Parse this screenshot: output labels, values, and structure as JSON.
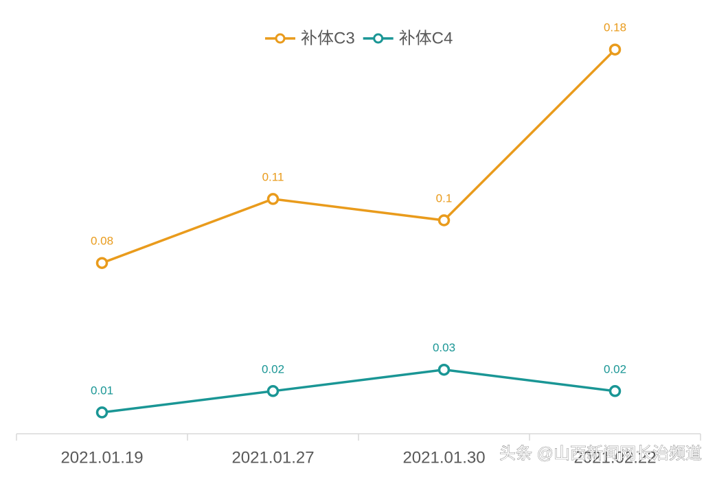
{
  "chart_data": {
    "type": "line",
    "categories": [
      "2021.01.19",
      "2021.01.27",
      "2021.01.30",
      "2021.02.22"
    ],
    "series": [
      {
        "name": "补体C3",
        "color": "#e99b1c",
        "values": [
          0.08,
          0.11,
          0.1,
          0.18
        ]
      },
      {
        "name": "补体C4",
        "color": "#1a9695",
        "values": [
          0.01,
          0.02,
          0.03,
          0.02
        ]
      }
    ],
    "ylim": [
      0,
      0.2
    ],
    "legend": "top"
  },
  "watermark": "头条 @山西新闻网长治频道"
}
